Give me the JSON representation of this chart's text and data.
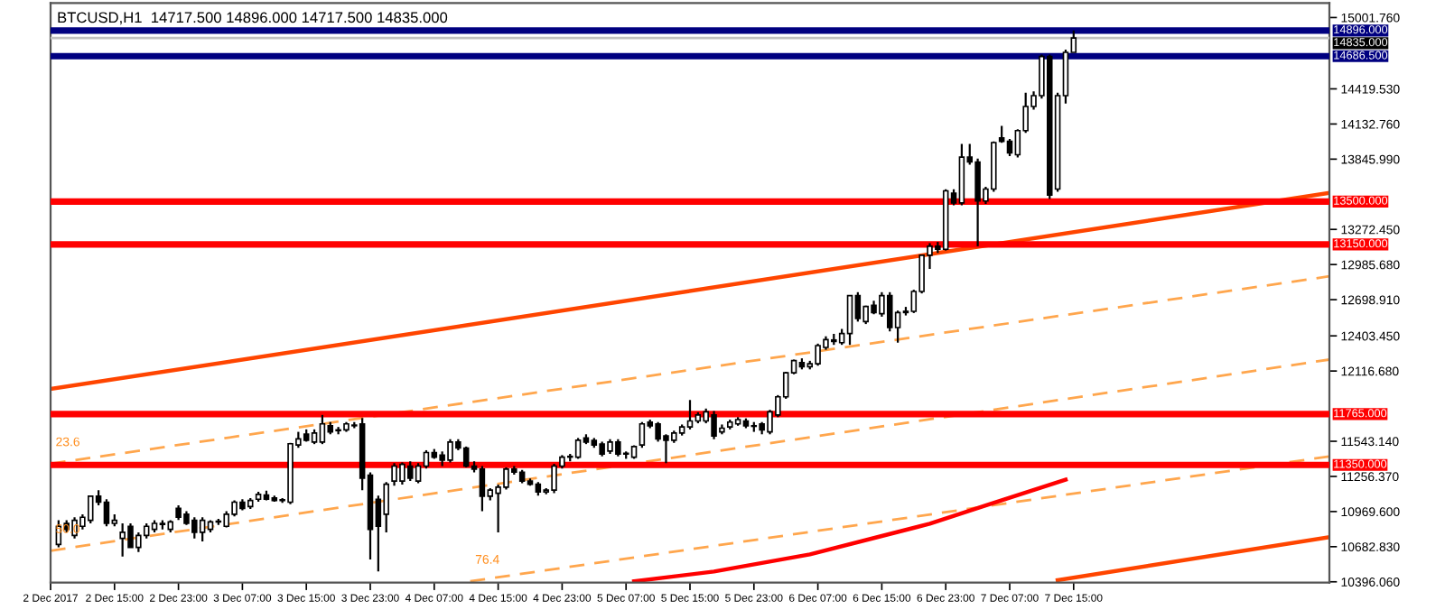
{
  "chart_data": {
    "type": "candlestick",
    "title": "BTCUSD,H1  14717.500 14896.000 14717.500 14835.000",
    "x": [
      "2017-12-02T08:00",
      "2017-12-02T09:00",
      "2017-12-02T10:00",
      "2017-12-02T11:00",
      "2017-12-02T12:00",
      "2017-12-02T13:00",
      "2017-12-02T14:00",
      "2017-12-02T15:00",
      "2017-12-02T16:00",
      "2017-12-02T17:00",
      "2017-12-02T18:00",
      "2017-12-02T19:00",
      "2017-12-02T20:00",
      "2017-12-02T21:00",
      "2017-12-02T22:00",
      "2017-12-02T23:00",
      "2017-12-03T00:00",
      "2017-12-03T01:00",
      "2017-12-03T02:00",
      "2017-12-03T03:00",
      "2017-12-03T04:00",
      "2017-12-03T05:00",
      "2017-12-03T06:00",
      "2017-12-03T07:00",
      "2017-12-03T08:00",
      "2017-12-03T09:00",
      "2017-12-03T10:00",
      "2017-12-03T11:00",
      "2017-12-03T12:00",
      "2017-12-03T13:00",
      "2017-12-03T14:00",
      "2017-12-03T15:00",
      "2017-12-03T16:00",
      "2017-12-03T17:00",
      "2017-12-03T18:00",
      "2017-12-03T19:00",
      "2017-12-03T20:00",
      "2017-12-03T21:00",
      "2017-12-03T22:00",
      "2017-12-03T23:00",
      "2017-12-04T00:00",
      "2017-12-04T01:00",
      "2017-12-04T02:00",
      "2017-12-04T03:00",
      "2017-12-04T04:00",
      "2017-12-04T05:00",
      "2017-12-04T06:00",
      "2017-12-04T07:00",
      "2017-12-04T08:00",
      "2017-12-04T09:00",
      "2017-12-04T10:00",
      "2017-12-04T11:00",
      "2017-12-04T12:00",
      "2017-12-04T13:00",
      "2017-12-04T14:00",
      "2017-12-04T15:00",
      "2017-12-04T16:00",
      "2017-12-04T17:00",
      "2017-12-04T18:00",
      "2017-12-04T19:00",
      "2017-12-04T20:00",
      "2017-12-04T21:00",
      "2017-12-04T22:00",
      "2017-12-04T23:00",
      "2017-12-05T00:00",
      "2017-12-05T01:00",
      "2017-12-05T02:00",
      "2017-12-05T03:00",
      "2017-12-05T04:00",
      "2017-12-05T05:00",
      "2017-12-05T06:00",
      "2017-12-05T07:00",
      "2017-12-05T08:00",
      "2017-12-05T09:00",
      "2017-12-05T10:00",
      "2017-12-05T11:00",
      "2017-12-05T12:00",
      "2017-12-05T13:00",
      "2017-12-05T14:00",
      "2017-12-05T15:00",
      "2017-12-05T16:00",
      "2017-12-05T17:00",
      "2017-12-05T18:00",
      "2017-12-05T19:00",
      "2017-12-05T20:00",
      "2017-12-05T21:00",
      "2017-12-05T22:00",
      "2017-12-05T23:00",
      "2017-12-06T00:00",
      "2017-12-06T01:00",
      "2017-12-06T02:00",
      "2017-12-06T03:00",
      "2017-12-06T04:00",
      "2017-12-06T05:00",
      "2017-12-06T06:00",
      "2017-12-06T07:00",
      "2017-12-06T08:00",
      "2017-12-06T09:00",
      "2017-12-06T10:00",
      "2017-12-06T11:00",
      "2017-12-06T12:00",
      "2017-12-06T13:00",
      "2017-12-06T14:00",
      "2017-12-06T15:00",
      "2017-12-06T16:00",
      "2017-12-06T17:00",
      "2017-12-06T18:00",
      "2017-12-06T19:00",
      "2017-12-06T20:00",
      "2017-12-06T21:00",
      "2017-12-06T22:00",
      "2017-12-06T23:00",
      "2017-12-07T00:00",
      "2017-12-07T01:00",
      "2017-12-07T02:00",
      "2017-12-07T03:00",
      "2017-12-07T04:00",
      "2017-12-07T05:00",
      "2017-12-07T06:00",
      "2017-12-07T07:00",
      "2017-12-07T08:00",
      "2017-12-07T09:00",
      "2017-12-07T10:00",
      "2017-12-07T11:00",
      "2017-12-07T12:00",
      "2017-12-07T13:00",
      "2017-12-07T14:00",
      "2017-12-07T15:00"
    ],
    "ohlc": [
      [
        10701,
        10898,
        10677,
        10849
      ],
      [
        10873,
        10898,
        10800,
        10824
      ],
      [
        10775,
        10923,
        10750,
        10898
      ],
      [
        10849,
        10947,
        10824,
        10923
      ],
      [
        10898,
        11095,
        10873,
        11095
      ],
      [
        11095,
        11144,
        11021,
        11046
      ],
      [
        11046,
        11070,
        10849,
        10873
      ],
      [
        10873,
        10947,
        10849,
        10898
      ],
      [
        10750,
        10873,
        10603,
        10800
      ],
      [
        10849,
        10873,
        10677,
        10677
      ],
      [
        10677,
        10800,
        10640,
        10775
      ],
      [
        10775,
        10873,
        10750,
        10849
      ],
      [
        10824,
        10898,
        10800,
        10873
      ],
      [
        10873,
        10898,
        10824,
        10865
      ],
      [
        10824,
        10898,
        10800,
        10885
      ],
      [
        10996,
        11021,
        10900,
        10923
      ],
      [
        10947,
        10972,
        10860,
        10873
      ],
      [
        10898,
        10923,
        10750,
        10800
      ],
      [
        10800,
        10923,
        10726,
        10898
      ],
      [
        10824,
        10898,
        10800,
        10885
      ],
      [
        10885,
        10910,
        10860,
        10890
      ],
      [
        10849,
        10972,
        10840,
        10947
      ],
      [
        10947,
        11060,
        10930,
        11046
      ],
      [
        11046,
        11070,
        10980,
        10996
      ],
      [
        11010,
        11080,
        10990,
        11060
      ],
      [
        11070,
        11130,
        11050,
        11110
      ],
      [
        11105,
        11140,
        11060,
        11070
      ],
      [
        11080,
        11100,
        11050,
        11060
      ],
      [
        11060,
        11080,
        11040,
        11065
      ],
      [
        11046,
        11530,
        11030,
        11523
      ],
      [
        11513,
        11620,
        11490,
        11562
      ],
      [
        11601,
        11640,
        11540,
        11552
      ],
      [
        11537,
        11640,
        11520,
        11611
      ],
      [
        11537,
        11758,
        11520,
        11685
      ],
      [
        11670,
        11700,
        11600,
        11620
      ],
      [
        11630,
        11660,
        11600,
        11636
      ],
      [
        11636,
        11700,
        11620,
        11685
      ],
      [
        11670,
        11700,
        11650,
        11675
      ],
      [
        11685,
        11733,
        11144,
        11242
      ],
      [
        11267,
        11290,
        10578,
        10824
      ],
      [
        11070,
        11100,
        10480,
        10849
      ],
      [
        10947,
        11210,
        10800,
        11193
      ],
      [
        11218,
        11365,
        11180,
        11341
      ],
      [
        11218,
        11370,
        11190,
        11355
      ],
      [
        11341,
        11380,
        11220,
        11242
      ],
      [
        11218,
        11365,
        11200,
        11341
      ],
      [
        11341,
        11470,
        11320,
        11451
      ],
      [
        11451,
        11480,
        11400,
        11414
      ],
      [
        11430,
        11460,
        11340,
        11390
      ],
      [
        11390,
        11560,
        11370,
        11537
      ],
      [
        11537,
        11560,
        11470,
        11488
      ],
      [
        11488,
        11500,
        11330,
        11341
      ],
      [
        11341,
        11380,
        11290,
        11316
      ],
      [
        11316,
        11340,
        10972,
        11095
      ],
      [
        11095,
        11160,
        11060,
        11144
      ],
      [
        11119,
        11190,
        10800,
        11168
      ],
      [
        11168,
        11330,
        11150,
        11316
      ],
      [
        11316,
        11340,
        11270,
        11291
      ],
      [
        11291,
        11310,
        11200,
        11218
      ],
      [
        11218,
        11240,
        11180,
        11193
      ],
      [
        11193,
        11210,
        11100,
        11130
      ],
      [
        11130,
        11160,
        11110,
        11144
      ],
      [
        11144,
        11360,
        11120,
        11341
      ],
      [
        11341,
        11430,
        11320,
        11414
      ],
      [
        11414,
        11440,
        11380,
        11420
      ],
      [
        11414,
        11570,
        11400,
        11552
      ],
      [
        11570,
        11600,
        11520,
        11537
      ],
      [
        11550,
        11570,
        11490,
        11513
      ],
      [
        11520,
        11540,
        11420,
        11439
      ],
      [
        11463,
        11560,
        11440,
        11537
      ],
      [
        11537,
        11560,
        11420,
        11439
      ],
      [
        11439,
        11460,
        11400,
        11445
      ],
      [
        11414,
        11510,
        11400,
        11500
      ],
      [
        11513,
        11700,
        11490,
        11685
      ],
      [
        11700,
        11720,
        11650,
        11670
      ],
      [
        11685,
        11700,
        11540,
        11562
      ],
      [
        11586,
        11600,
        11365,
        11552
      ],
      [
        11552,
        11630,
        11530,
        11611
      ],
      [
        11611,
        11680,
        11590,
        11660
      ],
      [
        11660,
        11880,
        11640,
        11709
      ],
      [
        11709,
        11780,
        11690,
        11758
      ],
      [
        11709,
        11810,
        11690,
        11783
      ],
      [
        11758,
        11790,
        11560,
        11586
      ],
      [
        11620,
        11680,
        11600,
        11650
      ],
      [
        11660,
        11720,
        11640,
        11700
      ],
      [
        11685,
        11740,
        11670,
        11720
      ],
      [
        11709,
        11730,
        11650,
        11670
      ],
      [
        11670,
        11700,
        11620,
        11665
      ],
      [
        11685,
        11700,
        11600,
        11636
      ],
      [
        11620,
        11800,
        11600,
        11783
      ],
      [
        11758,
        11920,
        11740,
        11906
      ],
      [
        11906,
        12110,
        11890,
        12102
      ],
      [
        12102,
        12210,
        12090,
        12201
      ],
      [
        12186,
        12220,
        12130,
        12152
      ],
      [
        12152,
        12200,
        12130,
        12176
      ],
      [
        12176,
        12340,
        12160,
        12324
      ],
      [
        12309,
        12400,
        12290,
        12373
      ],
      [
        12358,
        12420,
        12330,
        12370
      ],
      [
        12348,
        12460,
        12330,
        12422
      ],
      [
        12422,
        12732,
        12330,
        12732
      ],
      [
        12732,
        12760,
        12520,
        12545
      ],
      [
        12520,
        12650,
        12500,
        12643
      ],
      [
        12653,
        12690,
        12580,
        12594
      ],
      [
        12584,
        12760,
        12560,
        12732
      ],
      [
        12732,
        12760,
        12440,
        12471
      ],
      [
        12471,
        12610,
        12348,
        12594
      ],
      [
        12594,
        12640,
        12570,
        12604
      ],
      [
        12604,
        12780,
        12590,
        12766
      ],
      [
        12766,
        13061,
        12750,
        13061
      ],
      [
        13061,
        13160,
        12950,
        13135
      ],
      [
        13135,
        13170,
        13080,
        13110
      ],
      [
        13110,
        13600,
        13100,
        13587
      ],
      [
        13568,
        13600,
        13470,
        13489
      ],
      [
        13489,
        13971,
        13470,
        13863
      ],
      [
        13863,
        13971,
        13800,
        13823
      ],
      [
        13823,
        13850,
        13135,
        13504
      ],
      [
        13504,
        13620,
        13480,
        13602
      ],
      [
        13602,
        13990,
        13580,
        13981
      ],
      [
        14020,
        14118,
        13980,
        13991
      ],
      [
        13991,
        14010,
        13870,
        13897
      ],
      [
        13882,
        14090,
        13860,
        14079
      ],
      [
        14079,
        14389,
        14060,
        14276
      ],
      [
        14276,
        14400,
        14250,
        14364
      ],
      [
        14364,
        14700,
        14340,
        14684
      ],
      [
        14684,
        14700,
        13520,
        13553
      ],
      [
        13602,
        14389,
        13580,
        14364
      ],
      [
        14364,
        14740,
        14300,
        14717.5
      ],
      [
        14717.5,
        14896,
        14717.5,
        14835
      ]
    ],
    "series": [
      {
        "type": "line",
        "color": "#ff4500",
        "line_style": "solid",
        "x": [
          "2017-12-02T07:00",
          "2017-12-08T23:00"
        ],
        "values": [
          11970,
          13570
        ]
      },
      {
        "type": "line",
        "color": "#ff4500",
        "line_style": "solid",
        "x": [
          "2017-12-07T13:00",
          "2017-12-08T23:00"
        ],
        "values": [
          10410,
          10760
        ]
      },
      {
        "type": "line",
        "color": "#ffa64d",
        "line_style": "dashed",
        "x": [
          "2017-12-02T07:00",
          "2017-12-08T23:00"
        ],
        "values": [
          11360,
          12890
        ]
      },
      {
        "type": "line",
        "color": "#ffa64d",
        "line_style": "dashed",
        "x": [
          "2017-12-02T07:00",
          "2017-12-08T23:00"
        ],
        "values": [
          10650,
          12210
        ]
      },
      {
        "type": "line",
        "color": "#ffa64d",
        "line_style": "dashed",
        "x": [
          "2017-12-04T11:30",
          "2017-12-08T23:00"
        ],
        "values": [
          10400,
          11420
        ]
      },
      {
        "type": "line",
        "color": "#ff0000",
        "line_style": "solid",
        "x": [
          "2017-12-05T08:00",
          "2017-12-05T18:00",
          "2017-12-06T06:00",
          "2017-12-06T15:00",
          "2017-12-06T21:00",
          "2017-12-07T04:00",
          "2017-12-07T14:00"
        ],
        "values": [
          10400,
          10480,
          10620,
          10770,
          10870,
          11020,
          11230
        ]
      }
    ],
    "ref_lines": [
      {
        "axis": "y",
        "value": 14896,
        "label": "14896.000",
        "color": "#000080"
      },
      {
        "axis": "y",
        "value": 14835,
        "label": "14835.000",
        "color": "#c0c0c0"
      },
      {
        "axis": "y",
        "value": 14686.5,
        "label": "14686.500",
        "color": "#000080"
      },
      {
        "axis": "y",
        "value": 13500,
        "label": "13500.000",
        "color": "#ff0000"
      },
      {
        "axis": "y",
        "value": 13150,
        "label": "13150.000",
        "color": "#ff0000"
      },
      {
        "axis": "y",
        "value": 11765,
        "label": "11765.000",
        "color": "#ff0000"
      },
      {
        "axis": "y",
        "value": 11350,
        "label": "11350.000",
        "color": "#ff0000"
      }
    ],
    "annotations": [
      {
        "text": "23.6",
        "x": "2017-12-02T07:00",
        "y": 11360
      },
      {
        "text": "50.0",
        "x": "2017-12-02T07:00",
        "y": 10650
      },
      {
        "text": "76.4",
        "x": "2017-12-04T11:30",
        "y": 10400
      }
    ],
    "xlim": [
      "2017-12-02T07:00",
      "2017-12-08T23:00"
    ],
    "xticks": [
      {
        "value": "2017-12-02T07:00",
        "label": "2 Dec 2017"
      },
      {
        "value": "2017-12-02T15:00",
        "label": "2 Dec 15:00"
      },
      {
        "value": "2017-12-02T23:00",
        "label": "2 Dec 23:00"
      },
      {
        "value": "2017-12-03T07:00",
        "label": "3 Dec 07:00"
      },
      {
        "value": "2017-12-03T15:00",
        "label": "3 Dec 15:00"
      },
      {
        "value": "2017-12-03T23:00",
        "label": "3 Dec 23:00"
      },
      {
        "value": "2017-12-04T07:00",
        "label": "4 Dec 07:00"
      },
      {
        "value": "2017-12-04T15:00",
        "label": "4 Dec 15:00"
      },
      {
        "value": "2017-12-04T23:00",
        "label": "4 Dec 23:00"
      },
      {
        "value": "2017-12-05T07:00",
        "label": "5 Dec 07:00"
      },
      {
        "value": "2017-12-05T15:00",
        "label": "5 Dec 15:00"
      },
      {
        "value": "2017-12-05T23:00",
        "label": "5 Dec 23:00"
      },
      {
        "value": "2017-12-06T07:00",
        "label": "6 Dec 07:00"
      },
      {
        "value": "2017-12-06T15:00",
        "label": "6 Dec 15:00"
      },
      {
        "value": "2017-12-06T23:00",
        "label": "6 Dec 23:00"
      },
      {
        "value": "2017-12-07T07:00",
        "label": "7 Dec 07:00"
      },
      {
        "value": "2017-12-07T15:00",
        "label": "7 Dec 15:00"
      }
    ],
    "ylim": [
      10390,
      15120
    ],
    "yticks": [
      {
        "value": 15001.76,
        "label": "15001.760"
      },
      {
        "value": 14419.53,
        "label": "14419.530"
      },
      {
        "value": 14132.76,
        "label": "14132.760"
      },
      {
        "value": 13845.99,
        "label": "13845.990"
      },
      {
        "value": 13272.45,
        "label": "13272.450"
      },
      {
        "value": 12985.68,
        "label": "12985.680"
      },
      {
        "value": 12698.91,
        "label": "12698.910"
      },
      {
        "value": 12403.45,
        "label": "12403.450"
      },
      {
        "value": 12116.68,
        "label": "12116.680"
      },
      {
        "value": 11543.14,
        "label": "11543.140"
      },
      {
        "value": 11256.37,
        "label": "11256.370"
      },
      {
        "value": 10969.6,
        "label": "10969.600"
      },
      {
        "value": 10682.83,
        "label": "10682.830"
      },
      {
        "value": 10396.06,
        "label": "10396.060"
      }
    ]
  }
}
